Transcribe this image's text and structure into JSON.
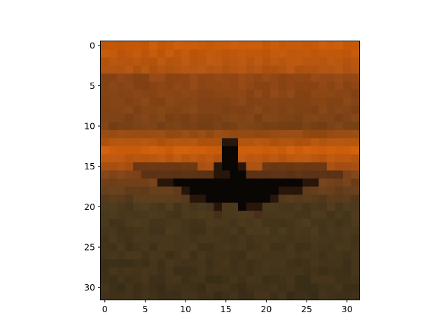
{
  "chart_data": {
    "type": "heatmap",
    "title": "",
    "xlabel": "",
    "ylabel": "",
    "grid": false,
    "resolution": [
      32,
      32
    ],
    "xlim": [
      -0.5,
      31.5
    ],
    "ylim": [
      31.5,
      -0.5
    ],
    "y_axis_inverted": true,
    "x_ticks": [
      0,
      5,
      10,
      15,
      20,
      25,
      30
    ],
    "x_tick_labels": [
      "0",
      "5",
      "10",
      "15",
      "20",
      "25",
      "30"
    ],
    "y_ticks": [
      0,
      5,
      10,
      15,
      20,
      25,
      30
    ],
    "y_tick_labels": [
      "0",
      "5",
      "10",
      "15",
      "20",
      "25",
      "30"
    ],
    "colors": {
      "background": "#ffffff",
      "axes": "#000000",
      "sky_top": "#c85a08",
      "sky_band": "#7a4216",
      "glow": "#cc5e0c",
      "ground": "#4a381c",
      "ground_dark": "#3e3018",
      "silhouette": "#0a0604"
    },
    "image_description_keys": {
      "subject": "airplane-silhouette",
      "background": "sunset-sky"
    }
  }
}
